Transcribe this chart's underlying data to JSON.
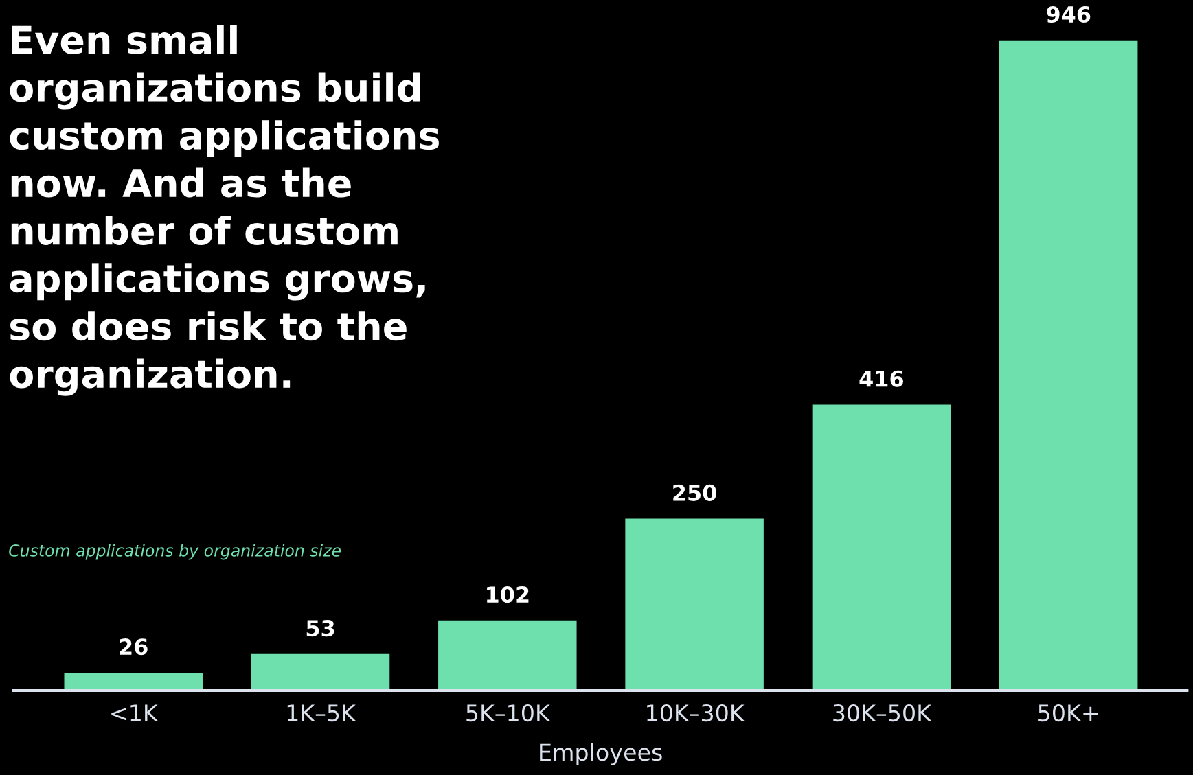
{
  "chart_data": {
    "type": "bar",
    "title": "Even small\norganizations build\ncustom applications\nnow. And as the\nnumber of custom\napplications grows,\nso does risk to the\norganization.",
    "subtitle": "Custom applications by organization size",
    "xlabel": "Employees",
    "categories": [
      "<1K",
      "1K–5K",
      "5K–10K",
      "10K–30K",
      "30K–50K",
      "50K+"
    ],
    "values": [
      26,
      53,
      102,
      250,
      416,
      946
    ],
    "color": "#6ee0ae",
    "data_labels": true,
    "grid": false,
    "legend": false
  }
}
